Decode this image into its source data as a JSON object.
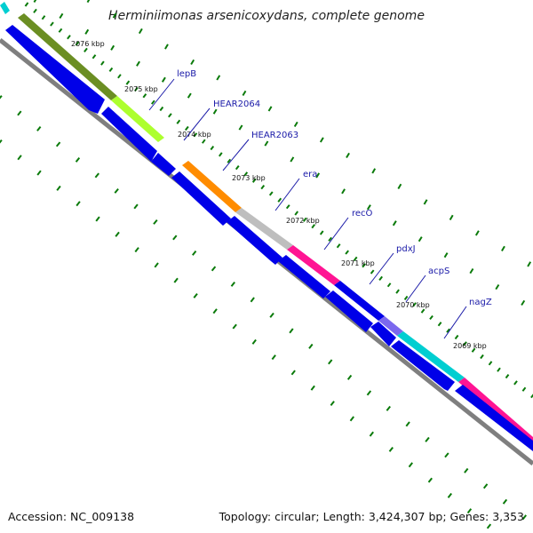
{
  "title": "Herminiimonas arsenicoxydans, complete genome",
  "footer": {
    "accession": "Accession: NC_009138",
    "summary": "Topology: circular; Length: 3,424,307 bp; Genes: 3,353"
  },
  "ticks": [
    "2076 kbp",
    "2075 kbp",
    "2074 kbp",
    "2073 kbp",
    "2072 kbp",
    "2071 kbp",
    "2070 kbp",
    "2069 kbp"
  ],
  "genes": [
    "lepB",
    "HEAR2064",
    "HEAR2063",
    "era",
    "recO",
    "pdxJ",
    "acpS",
    "nagZ"
  ],
  "colors": {
    "cds": "#0000e8",
    "lepB": "#adff2f",
    "olive": "#6b8e23",
    "HEAR2064": "#ff8c00",
    "HEAR2063": "#bebebe",
    "era": "#ff1493",
    "recO": "#0000e8",
    "pdxJ": "#7b68ee",
    "acpS": "#00ced1",
    "nagZ": "#ff1493",
    "tick": "#0a7a0a",
    "backbone": "#7f7f7f"
  }
}
